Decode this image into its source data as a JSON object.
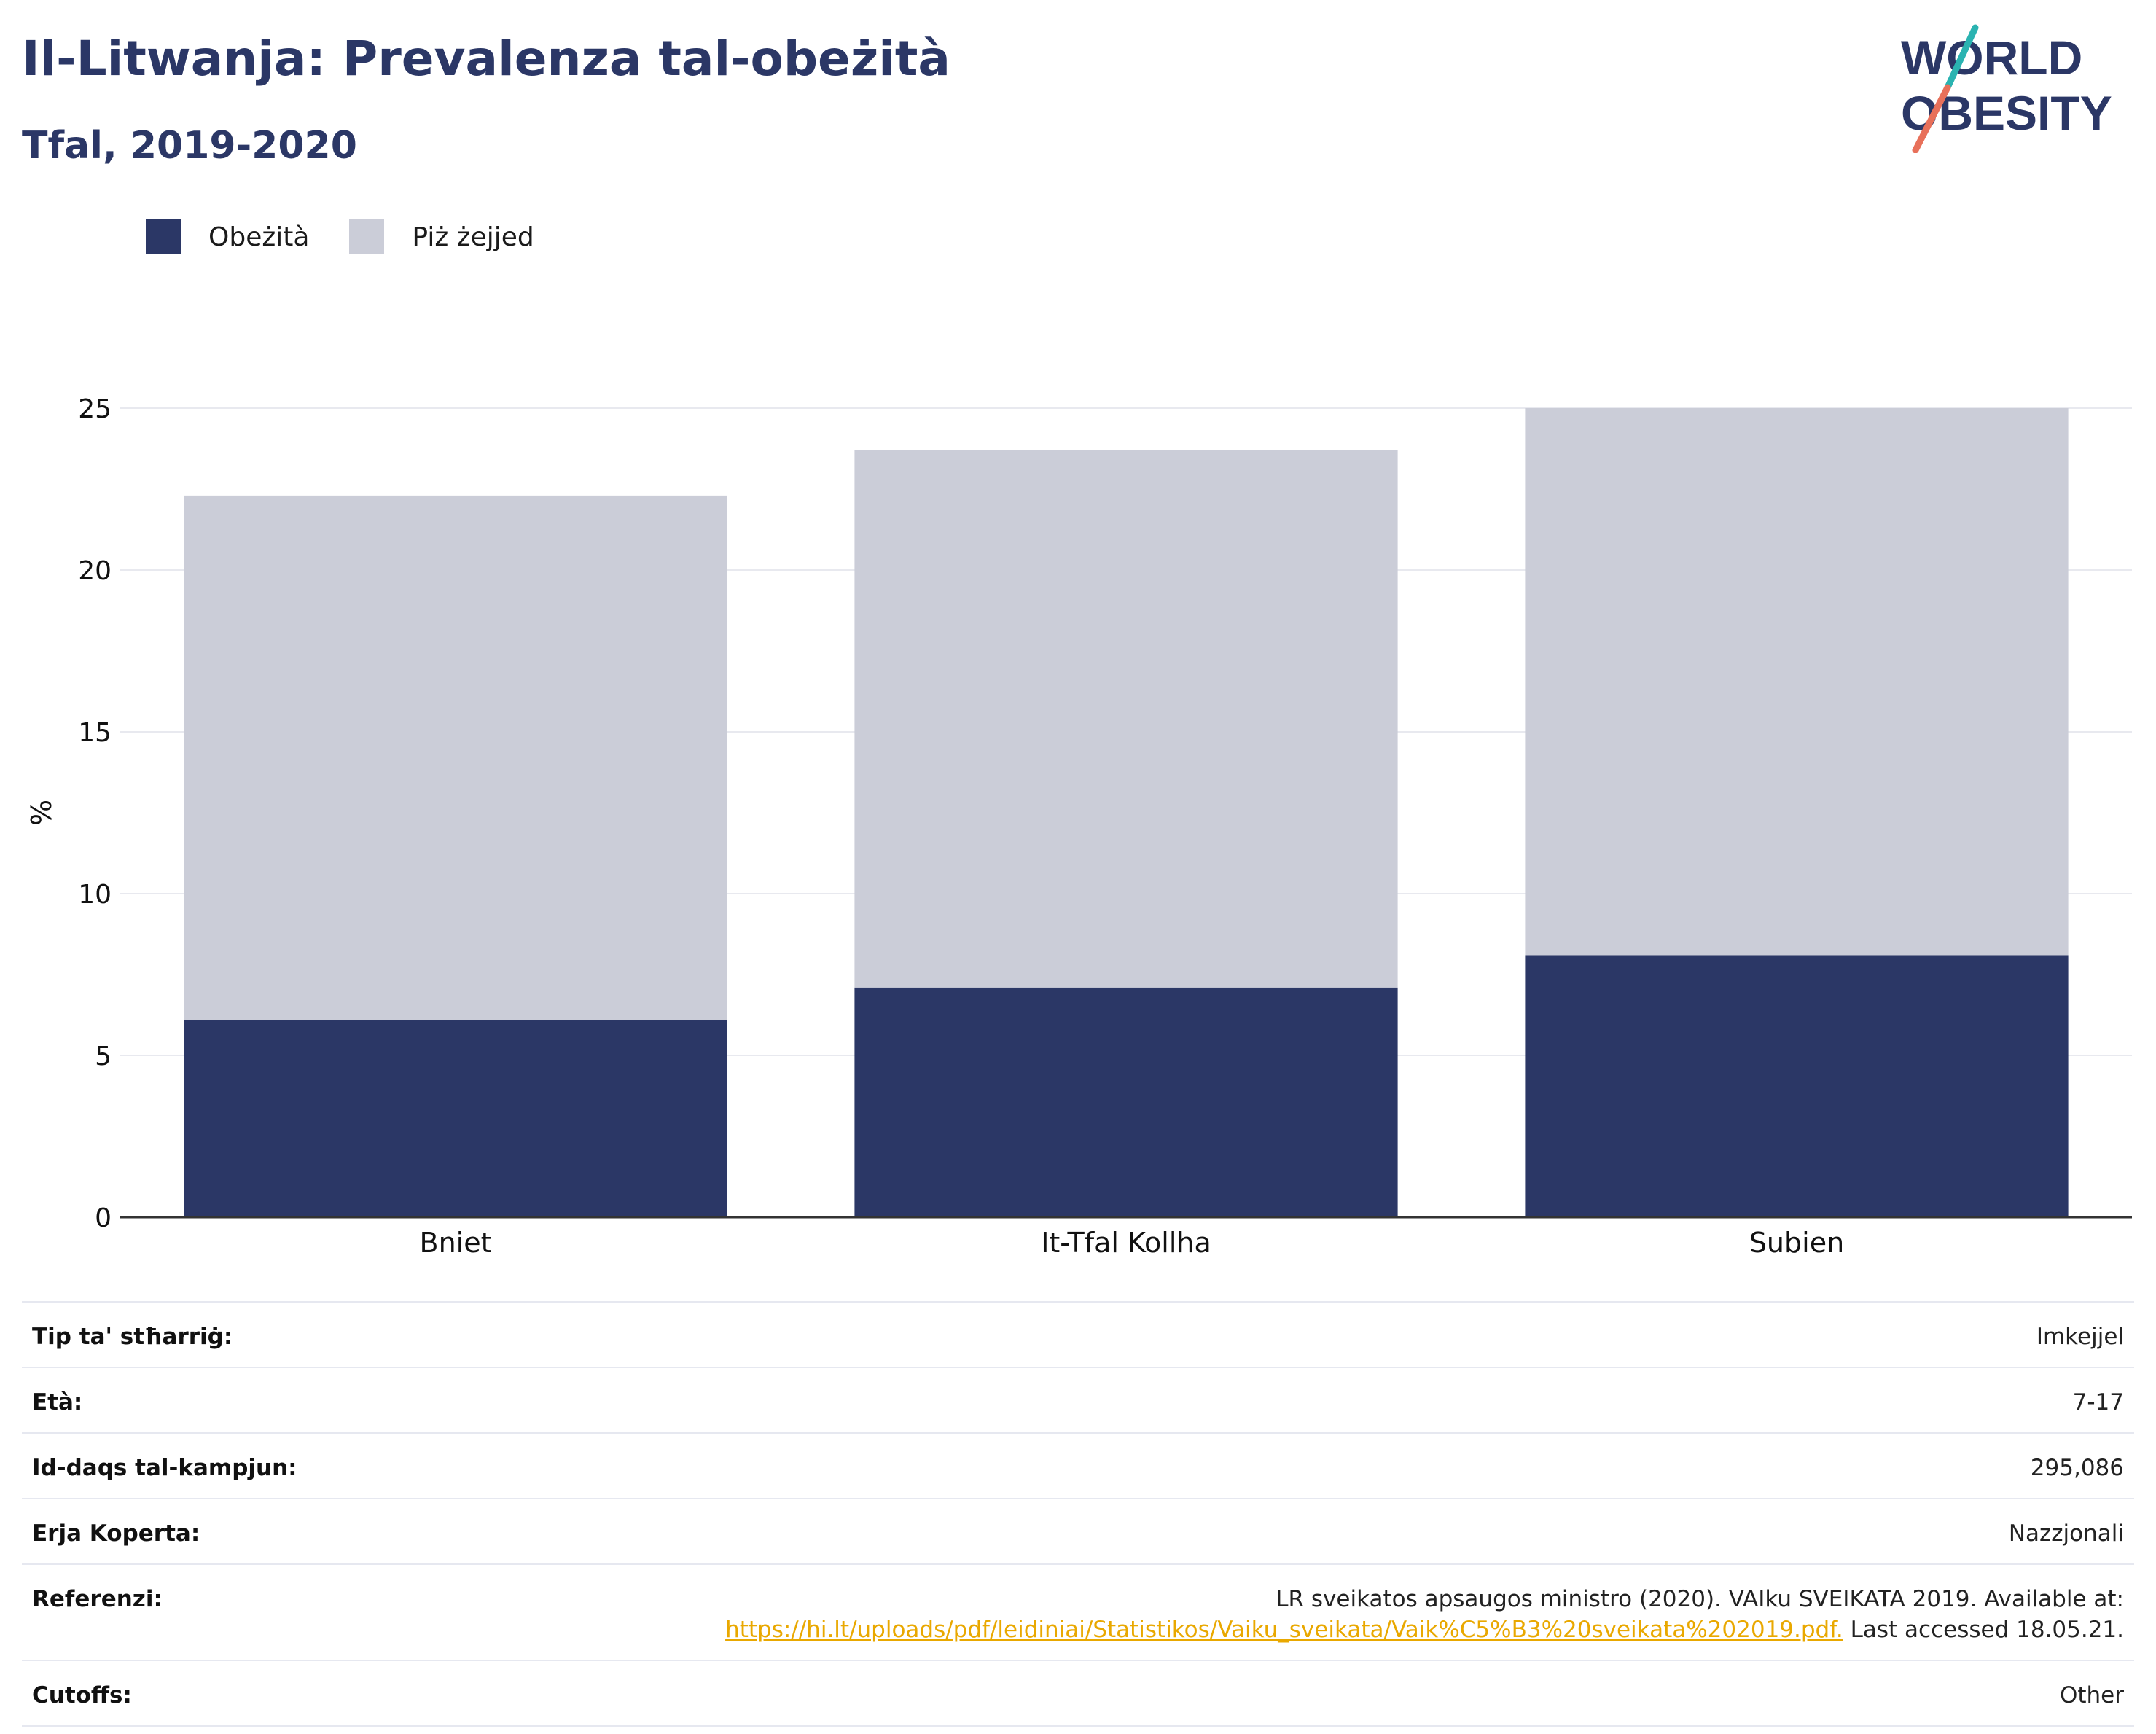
{
  "header": {
    "title": "Il-Litwanja: Prevalenza tal-obeżità",
    "subtitle": "Tfal, 2019-2020"
  },
  "logo": {
    "line1": "WORLD",
    "line2": "OBESITY",
    "colors": {
      "text": "#2b3766",
      "slash_top": "#2ab3b1",
      "slash_bottom": "#e8705a"
    }
  },
  "legend": [
    {
      "label": "Obeżità",
      "color": "#2b3766"
    },
    {
      "label": "Piż żejjed",
      "color": "#cbcdd8"
    }
  ],
  "chart_data": {
    "type": "bar",
    "stacked": true,
    "categories": [
      "Bniet",
      "It-Tfal Kollha",
      "Subien"
    ],
    "series": [
      {
        "name": "Obeżità",
        "values": [
          6.1,
          7.1,
          8.1
        ],
        "color": "#2b3766"
      },
      {
        "name": "Piż żejjed",
        "values": [
          16.2,
          16.6,
          16.9
        ],
        "color": "#cbcdd8"
      }
    ],
    "ylabel": "%",
    "ylim": [
      0,
      25
    ],
    "yticks": [
      0,
      5,
      10,
      15,
      20,
      25
    ],
    "grid": true,
    "legend_position": "top-left"
  },
  "info": [
    {
      "label": "Tip ta' stħarriġ:",
      "value": "Imkejjel"
    },
    {
      "label": "Età:",
      "value": "7-17"
    },
    {
      "label": "Id-daqs tal-kampjun:",
      "value": "295,086"
    },
    {
      "label": "Erja Koperta:",
      "value": "Nazzjonali"
    },
    {
      "label": "Referenzi:",
      "value": "LR sveikatos apsaugos ministro (2020). VAIku SVEIKATA 2019. Available at:",
      "link": "https://hi.lt/uploads/pdf/leidiniai/Statistikos/Vaiku_sveikata/Vaik%C5%B3%20sveikata%202019.pdf.",
      "after": "Last accessed 18.05.21."
    },
    {
      "label": "Cutoffs:",
      "value": "Other"
    }
  ]
}
